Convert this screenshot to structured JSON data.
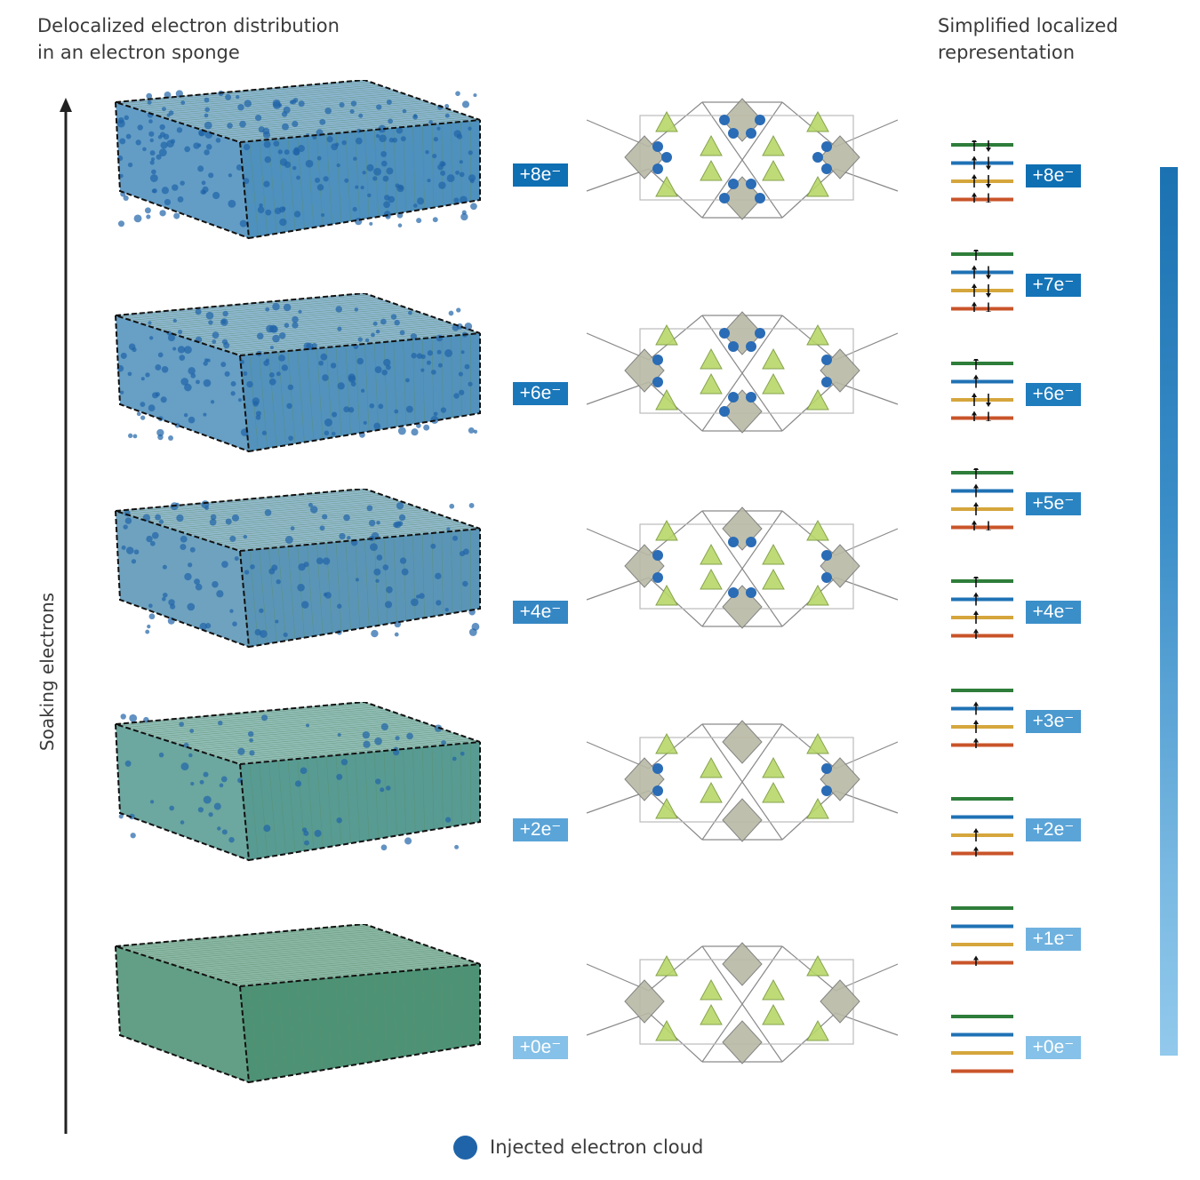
{
  "header": {
    "left_line1": "Delocalized electron distribution",
    "left_line2": "in an electron sponge",
    "right_line1": "Simplified localized",
    "right_line2": "representation"
  },
  "axis_label": "Soaking electrons",
  "legend": {
    "label": "Injected electron cloud",
    "color": "#1f64a8"
  },
  "block_rows": [
    {
      "badge": "+8e⁻",
      "badge_color": "#0f6fb3",
      "fill": "#2f7cb3",
      "density": 1.0
    },
    {
      "badge": "+6e⁻",
      "badge_color": "#1a77b9",
      "fill": "#347fb2",
      "density": 0.8
    },
    {
      "badge": "+4e⁻",
      "badge_color": "#3587c4",
      "fill": "#3d83aa",
      "density": 0.55
    },
    {
      "badge": "+2e⁻",
      "badge_color": "#5aa4d8",
      "fill": "#3b8a80",
      "density": 0.3
    },
    {
      "badge": "+0e⁻",
      "badge_color": "#85c1e8",
      "fill": "#2f7f5e",
      "density": 0.0
    }
  ],
  "level_rows": [
    {
      "badge": "+8e⁻",
      "badge_color": "#0f6fb3",
      "occupancy": [
        "ud",
        "ud",
        "ud",
        "ud"
      ]
    },
    {
      "badge": "+7e⁻",
      "badge_color": "#1574b7",
      "occupancy": [
        "u",
        "ud",
        "ud",
        "ud"
      ]
    },
    {
      "badge": "+6e⁻",
      "badge_color": "#1f7cbd",
      "occupancy": [
        "u",
        "u",
        "ud",
        "ud"
      ]
    },
    {
      "badge": "+5e⁻",
      "badge_color": "#2b84c2",
      "occupancy": [
        "u",
        "u",
        "u",
        "ud"
      ]
    },
    {
      "badge": "+4e⁻",
      "badge_color": "#3b8fc9",
      "occupancy": [
        "u",
        "u",
        "u",
        "u"
      ]
    },
    {
      "badge": "+3e⁻",
      "badge_color": "#4a99cf",
      "occupancy": [
        "",
        "u",
        "u",
        "u"
      ]
    },
    {
      "badge": "+2e⁻",
      "badge_color": "#5aa4d8",
      "occupancy": [
        "",
        "",
        "u",
        "u"
      ]
    },
    {
      "badge": "+1e⁻",
      "badge_color": "#6fb2e0",
      "occupancy": [
        "",
        "",
        "",
        "u"
      ]
    },
    {
      "badge": "+0e⁻",
      "badge_color": "#85c1e8",
      "occupancy": [
        "",
        "",
        "",
        ""
      ]
    }
  ],
  "level_colors": [
    "#2e7d3a",
    "#1f72b4",
    "#d5a63c",
    "#c9542a"
  ]
}
